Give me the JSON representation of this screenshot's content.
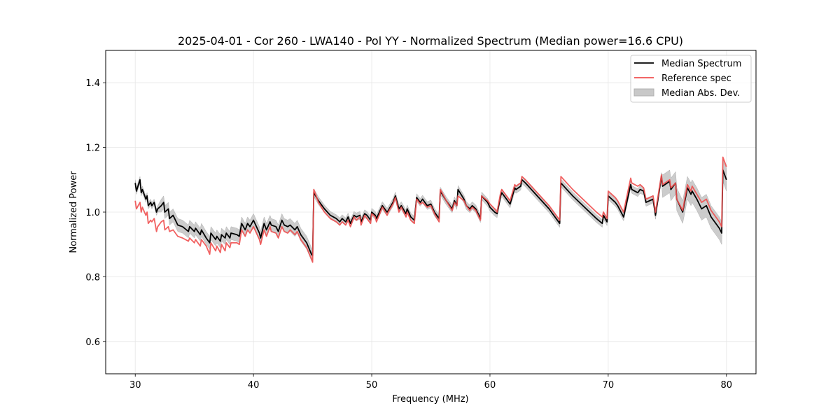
{
  "chart_data": {
    "type": "line",
    "title": "2025-04-01 - Cor 260 - LWA140 - Pol YY - Normalized Spectrum (Median power=16.6 CPU)",
    "xlabel": "Frequency (MHz)",
    "ylabel": "Normalized Power",
    "xlim": [
      27.5,
      82.5
    ],
    "ylim": [
      0.5,
      1.5
    ],
    "xticks": [
      30,
      40,
      50,
      60,
      70,
      80
    ],
    "xtick_labels": [
      "30",
      "40",
      "50",
      "60",
      "70",
      "80"
    ],
    "yticks": [
      0.6,
      0.8,
      1.0,
      1.2,
      1.4
    ],
    "ytick_labels": [
      "0.6",
      "0.8",
      "1.0",
      "1.2",
      "1.4"
    ],
    "grid": true,
    "legend_position": "top-right",
    "legend": [
      {
        "label": "Median Spectrum",
        "kind": "line",
        "color": "#000000"
      },
      {
        "label": "Reference spec",
        "kind": "line",
        "color": "#f05050"
      },
      {
        "label": "Median Abs. Dev.",
        "kind": "band",
        "color": "#c0c0c0"
      }
    ],
    "series": [
      {
        "name": "Median Spectrum",
        "color": "#000000",
        "x": [
          30.0,
          30.1,
          30.4,
          30.5,
          30.6,
          30.9,
          31.0,
          31.1,
          31.3,
          31.4,
          31.6,
          31.8,
          31.9,
          32.2,
          32.4,
          32.5,
          32.8,
          32.9,
          33.2,
          33.6,
          34.0,
          34.5,
          34.6,
          35.0,
          35.1,
          35.5,
          35.6,
          36.0,
          36.3,
          36.4,
          36.8,
          36.9,
          37.2,
          37.3,
          37.6,
          37.7,
          38.0,
          38.1,
          38.6,
          38.8,
          39.0,
          39.3,
          39.5,
          39.7,
          40.0,
          40.5,
          40.6,
          40.9,
          41.1,
          41.4,
          41.5,
          41.9,
          42.1,
          42.4,
          42.6,
          42.9,
          43.1,
          43.5,
          43.7,
          44.0,
          44.5,
          44.9,
          45.0,
          45.1,
          45.5,
          46.0,
          46.5,
          47.0,
          47.3,
          47.5,
          47.8,
          48.0,
          48.2,
          48.5,
          48.7,
          49.0,
          49.1,
          49.4,
          49.6,
          49.9,
          50.0,
          50.3,
          50.4,
          50.9,
          51.0,
          51.3,
          51.4,
          51.8,
          52.0,
          52.3,
          52.5,
          52.9,
          53.0,
          53.3,
          53.6,
          53.8,
          54.1,
          54.3,
          54.7,
          55.0,
          55.3,
          55.7,
          55.8,
          56.3,
          56.8,
          57.0,
          57.2,
          57.3,
          57.8,
          58.0,
          58.3,
          58.5,
          58.8,
          59.2,
          59.3,
          59.8,
          60.0,
          60.4,
          60.6,
          60.9,
          61.0,
          61.5,
          61.7,
          62.1,
          62.2,
          62.6,
          62.7,
          63.0,
          64.0,
          65.0,
          65.9,
          66.0,
          66.5,
          67.0,
          68.0,
          69.0,
          69.5,
          69.6,
          69.9,
          70.0,
          70.6,
          70.8,
          71.3,
          71.9,
          72.0,
          72.5,
          72.7,
          73.0,
          73.2,
          73.8,
          74.0,
          74.5,
          74.6,
          75.2,
          75.3,
          75.7,
          75.8,
          76.3,
          76.7,
          77.0,
          77.1,
          77.5,
          77.9,
          78.3,
          78.7,
          79.0,
          79.4,
          79.6,
          79.7,
          79.8,
          80.0
        ],
        "y": [
          1.09,
          1.065,
          1.1,
          1.06,
          1.07,
          1.04,
          1.05,
          1.02,
          1.03,
          1.02,
          1.03,
          1.0,
          1.01,
          1.02,
          1.03,
          1.0,
          1.01,
          0.98,
          0.99,
          0.96,
          0.955,
          0.94,
          0.955,
          0.94,
          0.95,
          0.93,
          0.945,
          0.92,
          0.905,
          0.935,
          0.915,
          0.925,
          0.91,
          0.93,
          0.92,
          0.935,
          0.92,
          0.935,
          0.93,
          0.925,
          0.965,
          0.945,
          0.965,
          0.955,
          0.975,
          0.935,
          0.92,
          0.965,
          0.945,
          0.97,
          0.96,
          0.955,
          0.94,
          0.975,
          0.96,
          0.955,
          0.96,
          0.945,
          0.955,
          0.93,
          0.905,
          0.87,
          0.865,
          1.06,
          1.035,
          1.01,
          0.99,
          0.98,
          0.97,
          0.98,
          0.97,
          0.985,
          0.965,
          0.99,
          0.985,
          0.99,
          0.97,
          0.995,
          0.99,
          0.975,
          1.0,
          0.99,
          0.98,
          1.02,
          1.015,
          1.0,
          1.005,
          1.03,
          1.05,
          1.01,
          1.02,
          0.995,
          1.01,
          0.985,
          0.975,
          1.045,
          1.03,
          1.04,
          1.02,
          1.025,
          1.0,
          0.98,
          1.065,
          1.035,
          1.01,
          1.035,
          1.02,
          1.07,
          1.04,
          1.02,
          1.01,
          1.02,
          1.01,
          0.98,
          1.05,
          1.03,
          1.015,
          1.0,
          0.995,
          1.05,
          1.06,
          1.035,
          1.025,
          1.075,
          1.07,
          1.08,
          1.1,
          1.09,
          1.05,
          1.01,
          0.965,
          1.09,
          1.07,
          1.05,
          1.015,
          0.98,
          0.965,
          0.99,
          0.97,
          1.05,
          1.03,
          1.02,
          0.985,
          1.085,
          1.07,
          1.06,
          1.07,
          1.065,
          1.03,
          1.04,
          0.99,
          1.11,
          1.08,
          1.095,
          1.07,
          1.09,
          1.04,
          1.0,
          1.075,
          1.055,
          1.065,
          1.04,
          1.01,
          1.02,
          0.985,
          0.97,
          0.95,
          0.935,
          1.13,
          1.12,
          1.1
        ]
      },
      {
        "name": "Reference spec",
        "color": "#f05050",
        "x": [
          30.0,
          30.1,
          30.4,
          30.5,
          30.6,
          30.9,
          31.0,
          31.1,
          31.3,
          31.4,
          31.6,
          31.8,
          31.9,
          32.2,
          32.4,
          32.5,
          32.8,
          32.9,
          33.2,
          33.6,
          34.0,
          34.5,
          34.6,
          35.0,
          35.1,
          35.5,
          35.6,
          36.0,
          36.3,
          36.4,
          36.8,
          36.9,
          37.2,
          37.3,
          37.6,
          37.7,
          38.0,
          38.1,
          38.6,
          38.8,
          39.0,
          39.3,
          39.5,
          39.7,
          40.0,
          40.5,
          40.6,
          40.9,
          41.1,
          41.4,
          41.5,
          41.9,
          42.1,
          42.4,
          42.6,
          42.9,
          43.1,
          43.5,
          43.7,
          44.0,
          44.5,
          44.9,
          45.0,
          45.1,
          45.5,
          46.0,
          46.5,
          47.0,
          47.3,
          47.5,
          47.8,
          48.0,
          48.2,
          48.5,
          48.7,
          49.0,
          49.1,
          49.4,
          49.6,
          49.9,
          50.0,
          50.3,
          50.4,
          50.9,
          51.0,
          51.3,
          51.4,
          51.8,
          52.0,
          52.3,
          52.5,
          52.9,
          53.0,
          53.3,
          53.6,
          53.8,
          54.1,
          54.3,
          54.7,
          55.0,
          55.3,
          55.7,
          55.8,
          56.3,
          56.8,
          57.0,
          57.2,
          57.3,
          57.8,
          58.0,
          58.3,
          58.5,
          58.8,
          59.2,
          59.3,
          59.8,
          60.0,
          60.4,
          60.6,
          60.9,
          61.0,
          61.5,
          61.7,
          62.1,
          62.2,
          62.6,
          62.7,
          63.0,
          64.0,
          65.0,
          65.9,
          66.0,
          66.5,
          67.0,
          68.0,
          69.0,
          69.5,
          69.6,
          69.9,
          70.0,
          70.6,
          70.8,
          71.3,
          71.9,
          72.0,
          72.5,
          72.7,
          73.0,
          73.2,
          73.8,
          74.0,
          74.5,
          74.6,
          75.2,
          75.3,
          75.7,
          75.8,
          76.3,
          76.7,
          77.0,
          77.1,
          77.5,
          77.9,
          78.3,
          78.7,
          79.0,
          79.4,
          79.6,
          79.7,
          79.8,
          80.0
        ],
        "y": [
          1.035,
          1.01,
          1.03,
          1.0,
          1.015,
          0.99,
          1.0,
          0.965,
          0.975,
          0.97,
          0.98,
          0.94,
          0.955,
          0.97,
          0.975,
          0.945,
          0.955,
          0.94,
          0.945,
          0.925,
          0.92,
          0.91,
          0.92,
          0.905,
          0.915,
          0.895,
          0.915,
          0.895,
          0.87,
          0.905,
          0.88,
          0.895,
          0.875,
          0.9,
          0.88,
          0.905,
          0.89,
          0.905,
          0.905,
          0.9,
          0.945,
          0.925,
          0.945,
          0.935,
          0.955,
          0.915,
          0.9,
          0.945,
          0.925,
          0.955,
          0.94,
          0.935,
          0.92,
          0.955,
          0.94,
          0.935,
          0.945,
          0.93,
          0.94,
          0.915,
          0.89,
          0.855,
          0.845,
          1.07,
          1.03,
          1.0,
          0.98,
          0.97,
          0.96,
          0.97,
          0.96,
          0.975,
          0.955,
          0.985,
          0.975,
          0.985,
          0.96,
          0.99,
          0.98,
          0.965,
          0.995,
          0.985,
          0.97,
          1.015,
          1.01,
          0.99,
          1.0,
          1.025,
          1.045,
          1.0,
          1.015,
          0.985,
          1.0,
          0.975,
          0.965,
          1.04,
          1.025,
          1.03,
          1.015,
          1.02,
          0.995,
          0.97,
          1.07,
          1.035,
          1.005,
          1.03,
          1.02,
          1.05,
          1.035,
          1.02,
          1.005,
          1.015,
          1.005,
          0.975,
          1.05,
          1.035,
          1.025,
          1.01,
          1.0,
          1.06,
          1.07,
          1.045,
          1.035,
          1.085,
          1.08,
          1.09,
          1.11,
          1.1,
          1.06,
          1.02,
          0.975,
          1.11,
          1.09,
          1.07,
          1.035,
          1.0,
          0.985,
          1.0,
          0.98,
          1.065,
          1.045,
          1.035,
          1.0,
          1.105,
          1.09,
          1.08,
          1.085,
          1.075,
          1.04,
          1.05,
          1.0,
          1.115,
          1.085,
          1.1,
          1.075,
          1.09,
          1.04,
          1.005,
          1.085,
          1.065,
          1.08,
          1.055,
          1.03,
          1.04,
          1.005,
          0.99,
          0.97,
          0.955,
          1.17,
          1.16,
          1.14
        ]
      }
    ],
    "band": {
      "name": "Median Abs. Dev.",
      "color": "#c0c0c0",
      "half_width_by_region": [
        {
          "from": 30,
          "to": 32,
          "value": 0.01
        },
        {
          "from": 32,
          "to": 45,
          "value": 0.02
        },
        {
          "from": 45,
          "to": 74.5,
          "value": 0.012
        },
        {
          "from": 74.5,
          "to": 80,
          "value": 0.035
        }
      ]
    }
  }
}
